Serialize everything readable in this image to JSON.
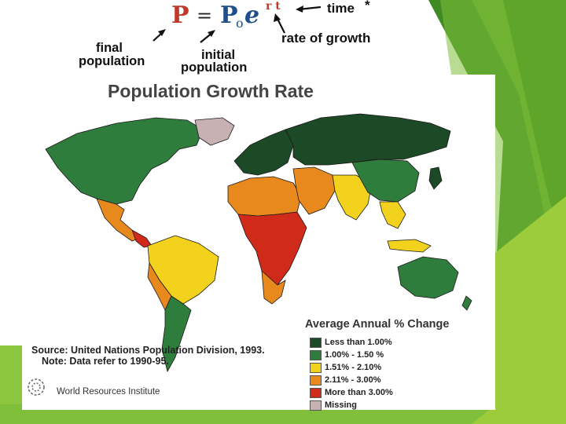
{
  "formula": {
    "lhs": "P",
    "equals": "=",
    "p0": "P",
    "p0_sub": "o",
    "base": "e",
    "exponent": "r t",
    "time_label": "time",
    "asterisk": "*",
    "rate_label": "rate of growth",
    "final_label_1": "final",
    "final_label_2": "population",
    "initial_label_1": "initial",
    "initial_label_2": "population"
  },
  "map": {
    "title": "Population Growth Rate",
    "source": "Source: United Nations Population Division, 1993.",
    "note": "Note: Data refer to 1990-95.",
    "publisher": "World Resources Institute",
    "legend": {
      "title": "Average Annual % Change",
      "items": [
        {
          "label": "Less than 1.00%",
          "color": "#1c4a26"
        },
        {
          "label": "1.00% - 1.50 %",
          "color": "#2f7d3c"
        },
        {
          "label": "1.51% - 2.10%",
          "color": "#f2d21c"
        },
        {
          "label": "2.11% - 3.00%",
          "color": "#e8891e"
        },
        {
          "label": "More than 3.00%",
          "color": "#cf2a1a"
        },
        {
          "label": "Missing",
          "color": "#c7b1b3"
        }
      ]
    }
  },
  "theme": {
    "green_dark": "#3a7d1e",
    "green_mid": "#5ea52a",
    "green_light": "#8cc63f",
    "formula_red": "#c0392b",
    "formula_blue": "#1f4f8c"
  }
}
